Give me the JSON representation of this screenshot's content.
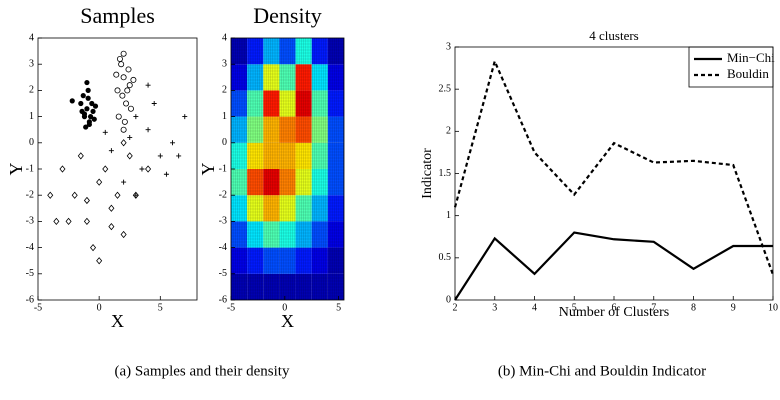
{
  "chart_data": [
    {
      "type": "scatter",
      "title": "Samples",
      "x_label": "X",
      "y_label": "Y",
      "xlim": [
        -5,
        8
      ],
      "ylim": [
        -6,
        4
      ],
      "xticks": [
        -5,
        0,
        5
      ],
      "yticks": [
        -6,
        -5,
        -4,
        -3,
        -2,
        -1,
        0,
        1,
        2,
        3,
        4
      ],
      "series": [
        {
          "marker": "dot",
          "color": "#000000",
          "x": [
            -1.5,
            -1.2,
            -1,
            -0.8,
            -0.5,
            -1.3,
            -0.9,
            -0.6,
            -1.1,
            -0.7,
            -1.4,
            -0.4,
            -0.9,
            -1.2,
            -0.3,
            -2.2,
            -0.8,
            -1
          ],
          "y": [
            1.5,
            1.0,
            1.3,
            0.8,
            1.2,
            1.8,
            2.0,
            1.5,
            0.6,
            1.0,
            1.2,
            0.9,
            1.7,
            1.1,
            1.4,
            1.6,
            0.7,
            2.3
          ]
        },
        {
          "marker": "circle",
          "color": "#000000",
          "x": [
            1.5,
            2,
            2.5,
            1.8,
            2.2,
            1.6,
            2.4,
            2.0,
            1.9,
            2.6,
            1.4,
            2.1,
            2.3,
            1.7,
            2.8,
            2.0
          ],
          "y": [
            2.0,
            2.5,
            2.2,
            3.0,
            1.5,
            1.0,
            2.8,
            3.4,
            1.8,
            1.3,
            2.6,
            0.8,
            2.0,
            3.2,
            2.4,
            0.5
          ]
        },
        {
          "marker": "plus",
          "color": "#000000",
          "x": [
            3,
            4,
            5,
            2.5,
            3.5,
            4.5,
            6,
            1,
            0.5,
            5.5,
            3,
            4,
            7,
            2,
            6.5
          ],
          "y": [
            1,
            0.5,
            -0.5,
            0.2,
            -1,
            1.5,
            0,
            -0.3,
            0.4,
            -1.2,
            -2,
            2.2,
            1,
            -1.5,
            -0.5
          ]
        },
        {
          "marker": "diamond",
          "color": "#000000",
          "x": [
            -3,
            -2,
            -1,
            0,
            1,
            2,
            3,
            -2.5,
            -1.5,
            -0.5,
            0.5,
            1.5,
            2.5,
            -4,
            4,
            0,
            -1,
            1,
            -3.5,
            2
          ],
          "y": [
            -1,
            -2,
            -3,
            -1.5,
            -2.5,
            -3.5,
            -2,
            -3,
            -0.5,
            -4,
            -1,
            -2,
            -0.5,
            -2,
            -1,
            -4.5,
            -2.2,
            -3.2,
            -3,
            0
          ]
        }
      ]
    },
    {
      "type": "heatmap",
      "title": "Density",
      "x_label": "X",
      "y_label": "Y",
      "xlim": [
        -5,
        5.5
      ],
      "ylim": [
        -6,
        4
      ],
      "xticks": [
        -5,
        0,
        5
      ],
      "yticks": [
        -6,
        -5,
        -4,
        -3,
        -2,
        -1,
        0,
        1,
        2,
        3,
        4
      ],
      "x_bins": [
        -5,
        -3.5,
        -2,
        -0.5,
        1,
        2.5,
        4,
        5.5
      ],
      "y_bins": [
        -6,
        -5,
        -4,
        -3,
        -2,
        -1,
        0,
        1,
        2,
        3,
        4
      ],
      "values": [
        [
          0.05,
          0.05,
          0.05,
          0.05,
          0.05,
          0.05,
          0.05
        ],
        [
          0.1,
          0.15,
          0.2,
          0.2,
          0.15,
          0.1,
          0.05
        ],
        [
          0.2,
          0.35,
          0.45,
          0.4,
          0.3,
          0.2,
          0.1
        ],
        [
          0.35,
          0.6,
          0.7,
          0.6,
          0.45,
          0.3,
          0.15
        ],
        [
          0.45,
          0.8,
          0.9,
          0.75,
          0.6,
          0.4,
          0.2
        ],
        [
          0.4,
          0.65,
          0.7,
          0.7,
          0.65,
          0.45,
          0.2
        ],
        [
          0.3,
          0.5,
          0.7,
          0.75,
          0.8,
          0.5,
          0.2
        ],
        [
          0.2,
          0.45,
          0.85,
          0.6,
          0.9,
          0.45,
          0.15
        ],
        [
          0.1,
          0.3,
          0.6,
          0.45,
          0.85,
          0.35,
          0.1
        ],
        [
          0.05,
          0.15,
          0.3,
          0.2,
          0.4,
          0.15,
          0.05
        ]
      ]
    },
    {
      "type": "line",
      "title": "4 clusters",
      "x_label": "Number of Clusters",
      "y_label": "Indicator",
      "xlim": [
        2,
        10
      ],
      "ylim": [
        0,
        3
      ],
      "xticks": [
        2,
        3,
        4,
        5,
        6,
        7,
        8,
        9,
        10
      ],
      "yticks": [
        0,
        0.5,
        1,
        1.5,
        2,
        2.5,
        3
      ],
      "legend": "upper right",
      "x": [
        2,
        3,
        4,
        5,
        6,
        7,
        8,
        9,
        10
      ],
      "series": [
        {
          "name": "Min−Chi",
          "color": "#000000",
          "style": "solid",
          "values": [
            0,
            0.73,
            0.31,
            0.8,
            0.72,
            0.69,
            0.37,
            0.64,
            0.64
          ]
        },
        {
          "name": "Bouldin",
          "color": "#000000",
          "style": "dashed",
          "values": [
            1.1,
            2.83,
            1.75,
            1.25,
            1.86,
            1.63,
            1.65,
            1.6,
            0.3
          ]
        }
      ]
    }
  ],
  "captions": [
    "(a) Samples and their density",
    "(b) Min-Chi and Bouldin Indicator"
  ]
}
